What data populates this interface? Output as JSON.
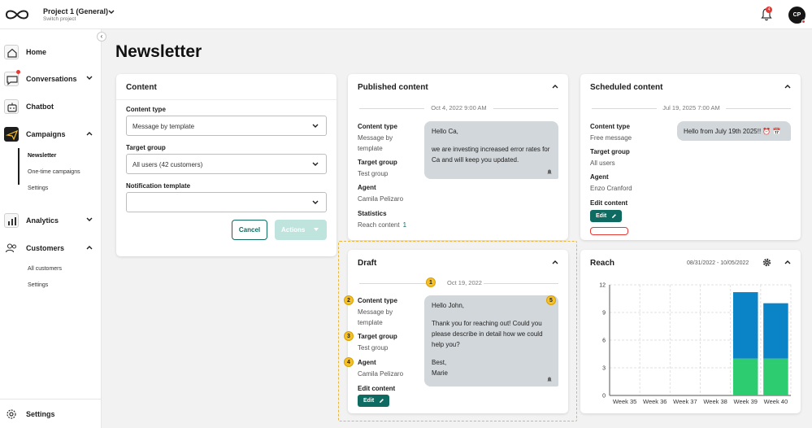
{
  "header": {
    "project_title": "Project 1 (General)",
    "project_subtitle": "Switch project",
    "notification_count": "4",
    "avatar_initials": "CP"
  },
  "sidebar": {
    "items": [
      {
        "label": "Home"
      },
      {
        "label": "Conversations"
      },
      {
        "label": "Chatbot"
      },
      {
        "label": "Campaigns"
      },
      {
        "label": "Analytics"
      },
      {
        "label": "Customers"
      }
    ],
    "campaigns_sub": [
      "Newsletter",
      "One-time campaigns",
      "Settings"
    ],
    "customers_sub": [
      "All customers",
      "Settings"
    ],
    "footer_label": "Settings"
  },
  "page": {
    "title": "Newsletter"
  },
  "content_card": {
    "title": "Content",
    "content_type_label": "Content type",
    "content_type_value": "Message by template",
    "target_group_label": "Target group",
    "target_group_value": "All users (42 customers)",
    "notification_template_label": "Notification template",
    "notification_template_value": "",
    "cancel_label": "Cancel",
    "actions_label": "Actions"
  },
  "published_card": {
    "title": "Published content",
    "date": "Oct 4, 2022 9:00 AM",
    "content_type_label": "Content type",
    "content_type_value": "Message by template",
    "target_group_label": "Target group",
    "target_group_value": "Test group",
    "agent_label": "Agent",
    "agent_value": "Camila Pelizaro",
    "statistics_label": "Statistics",
    "reach_label": "Reach content",
    "reach_value": "1",
    "message_p1": "Hello Ca,",
    "message_p2": "we are investing increased error rates for Ca and will keep you updated."
  },
  "scheduled_card": {
    "title": "Scheduled content",
    "date": "Jul 19, 2025 7:00 AM",
    "content_type_label": "Content type",
    "content_type_value": "Free message",
    "target_group_label": "Target group",
    "target_group_value": "All users",
    "agent_label": "Agent",
    "agent_value": "Enzo Cranford",
    "edit_content_label": "Edit content",
    "edit_label": "Edit",
    "message": "Hello from July 19th 2025!! ⏰ 📅"
  },
  "draft_card": {
    "title": "Draft",
    "date": "Oct 19, 2022",
    "content_type_label": "Content type",
    "content_type_value": "Message by template",
    "target_group_label": "Target group",
    "target_group_value": "Test group",
    "agent_label": "Agent",
    "agent_value": "Camila Pelizaro",
    "edit_content_label": "Edit content",
    "edit_label": "Edit",
    "message_p1": "Hello John,",
    "message_p2": "Thank you for reaching out! Could you please describe in detail how we could help you?",
    "message_p3": "Best,",
    "message_p4": "Marie",
    "markers": [
      "1",
      "2",
      "3",
      "4",
      "5"
    ]
  },
  "reach_card": {
    "title": "Reach",
    "date_range": "08/31/2022 - 10/05/2022"
  },
  "chart_data": {
    "type": "bar",
    "stacked": true,
    "categories": [
      "Week 35",
      "Week 36",
      "Week 37",
      "Week 38",
      "Week 39",
      "Week 40"
    ],
    "series": [
      {
        "values": [
          0,
          0,
          0,
          0,
          4,
          4
        ],
        "color": "#2ecc71"
      },
      {
        "values": [
          0,
          0,
          0,
          0,
          7.2,
          6
        ],
        "color": "#0a84c6"
      }
    ],
    "ylim": [
      0,
      12
    ],
    "yticks": [
      "0",
      "3",
      "6",
      "9",
      "12"
    ],
    "grid": true
  },
  "colors": {
    "accent": "#0f6b61",
    "accent_disabled": "#bfe3dd",
    "badge": "#e53935",
    "marker": "#f5c02a"
  }
}
